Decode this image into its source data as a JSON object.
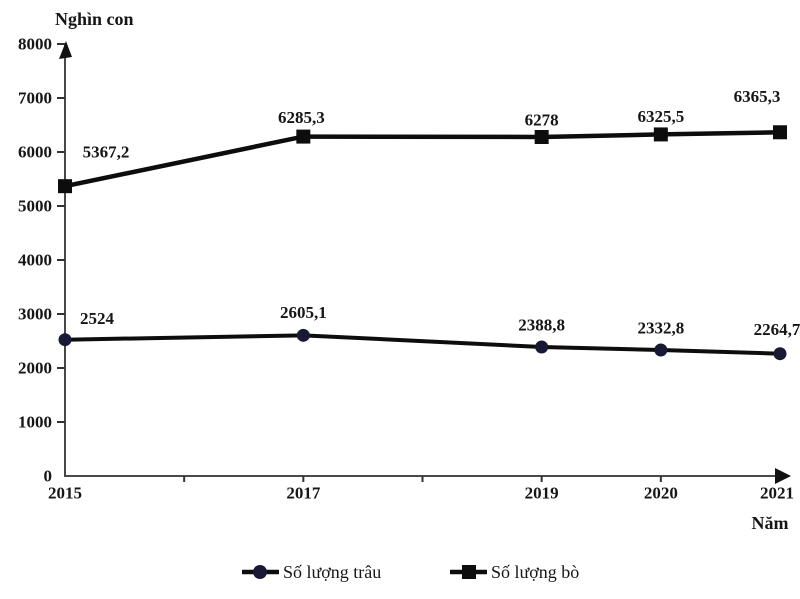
{
  "chart_data": {
    "type": "line",
    "title": "",
    "y_axis": {
      "unit": "Nghìn con",
      "min": 0,
      "max": 8000,
      "step": 1000,
      "tick_labels": [
        "0",
        "1000",
        "2000",
        "3000",
        "4000",
        "5000",
        "6000",
        "7000",
        "8000"
      ]
    },
    "x_axis": {
      "label": "Năm",
      "ticks": [
        "2015",
        "",
        "2017",
        "",
        "2019",
        "2020",
        "2021"
      ]
    },
    "series": [
      {
        "name": "Số lượng trâu",
        "marker": "circle",
        "marker_color": "#191936",
        "line_color": "#0d0d0d",
        "points": [
          {
            "x_tick": 0,
            "value": 2524,
            "label": "2524",
            "label_dx": 32,
            "label_dy": -21
          },
          {
            "x_tick": 2,
            "value": 2605.1,
            "label": "2605,1",
            "label_dx": 0,
            "label_dy": -23
          },
          {
            "x_tick": 4,
            "value": 2388.8,
            "label": "2388,8",
            "label_dx": 0,
            "label_dy": -22
          },
          {
            "x_tick": 5,
            "value": 2332.8,
            "label": "2332,8",
            "label_dx": 0,
            "label_dy": -22
          },
          {
            "x_tick": 6,
            "value": 2264.7,
            "label": "2264,7",
            "label_dx": -3,
            "label_dy": -24
          }
        ]
      },
      {
        "name": "Số lượng bò",
        "marker": "square",
        "marker_color": "#0d0d0d",
        "line_color": "#0d0d0d",
        "points": [
          {
            "x_tick": 0,
            "value": 5367.2,
            "label": "5367,2",
            "label_dx": 41,
            "label_dy": -34
          },
          {
            "x_tick": 2,
            "value": 6285.3,
            "label": "6285,3",
            "label_dx": -2,
            "label_dy": -19
          },
          {
            "x_tick": 4,
            "value": 6278,
            "label": "6278",
            "label_dx": 0,
            "label_dy": -17
          },
          {
            "x_tick": 5,
            "value": 6325.5,
            "label": "6325,5",
            "label_dx": 0,
            "label_dy": -18
          },
          {
            "x_tick": 6,
            "value": 6365.3,
            "label": "6365,3",
            "label_dx": -23,
            "label_dy": -36
          }
        ]
      }
    ],
    "legend_position": "bottom",
    "grid": false,
    "colors": {
      "axis": "#4a4a4a",
      "text": "#161616"
    }
  }
}
